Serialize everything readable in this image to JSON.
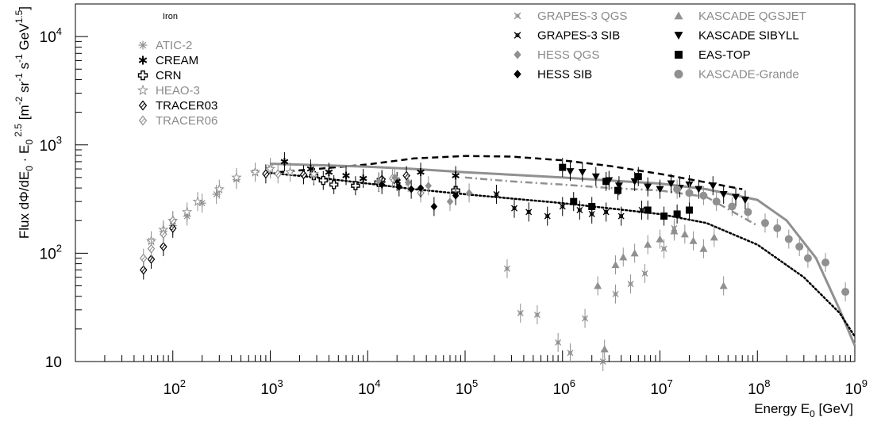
{
  "chart_data": {
    "type": "scatter",
    "title": "Iron",
    "xlabel": "Energy E_0 [GeV]",
    "ylabel": "Flux dΦ/dE_0 · E_0^2.5 [m^-2 sr^-1 s^-1 GeV^1.5]",
    "xscale": "log",
    "yscale": "log",
    "xlim": [
      10,
      1000000000
    ],
    "ylim": [
      10,
      20000
    ],
    "x_tick_labels": [
      {
        "v": 100,
        "b": "10",
        "e": "2"
      },
      {
        "v": 1000,
        "b": "10",
        "e": "3"
      },
      {
        "v": 10000,
        "b": "10",
        "e": "4"
      },
      {
        "v": 100000,
        "b": "10",
        "e": "5"
      },
      {
        "v": 1000000,
        "b": "10",
        "e": "6"
      },
      {
        "v": 10000000,
        "b": "10",
        "e": "7"
      },
      {
        "v": 100000000,
        "b": "10",
        "e": "8"
      },
      {
        "v": 1000000000,
        "b": "10",
        "e": "9"
      }
    ],
    "y_tick_labels": [
      {
        "v": 10,
        "b": "10",
        "e": ""
      },
      {
        "v": 100,
        "b": "10",
        "e": "2"
      },
      {
        "v": 1000,
        "b": "10",
        "e": "3"
      },
      {
        "v": 10000,
        "b": "10",
        "e": "4"
      }
    ],
    "legend_left": [
      {
        "name": "ATIC-2",
        "marker": "asterisk",
        "color": "#909090"
      },
      {
        "name": "CREAM",
        "marker": "snowflake",
        "color": "#000000"
      },
      {
        "name": "CRN",
        "marker": "cross-open",
        "color": "#000000"
      },
      {
        "name": "HEAO-3",
        "marker": "star-open",
        "color": "#909090"
      },
      {
        "name": "TRACER03",
        "marker": "diamond-open",
        "color": "#000000"
      },
      {
        "name": "TRACER06",
        "marker": "diamond-open",
        "color": "#909090"
      }
    ],
    "legend_mid": [
      {
        "name": "GRAPES-3 QGS",
        "marker": "xstar",
        "color": "#909090"
      },
      {
        "name": "GRAPES-3 SIB",
        "marker": "xstar",
        "color": "#000000"
      },
      {
        "name": "HESS QGS",
        "marker": "diamond",
        "color": "#909090"
      },
      {
        "name": "HESS SIB",
        "marker": "diamond",
        "color": "#000000"
      }
    ],
    "legend_right": [
      {
        "name": "KASCADE QGSJET",
        "marker": "triangle-up",
        "color": "#909090"
      },
      {
        "name": "KASCADE SIBYLL",
        "marker": "triangle-down",
        "color": "#000000"
      },
      {
        "name": "EAS-TOP",
        "marker": "square",
        "color": "#000000"
      },
      {
        "name": "KASCADE-Grande",
        "marker": "circle",
        "color": "#909090"
      }
    ],
    "series": [
      {
        "name": "ATIC-2",
        "marker": "asterisk",
        "color": "#909090",
        "points": [
          [
            60,
            130
          ],
          [
            80,
            160
          ],
          [
            100,
            180
          ],
          [
            140,
            220
          ],
          [
            200,
            290
          ],
          [
            280,
            350
          ],
          [
            450,
            480
          ],
          [
            700,
            560
          ],
          [
            1000,
            620
          ]
        ]
      },
      {
        "name": "CREAM",
        "marker": "snowflake",
        "color": "#000000",
        "points": [
          [
            1400,
            700
          ],
          [
            2600,
            600
          ],
          [
            4000,
            560
          ],
          [
            6000,
            520
          ],
          [
            9000,
            490
          ],
          [
            14000,
            470
          ],
          [
            20000,
            460
          ],
          [
            35000,
            560
          ],
          [
            80000,
            520
          ]
        ]
      },
      {
        "name": "CRN",
        "marker": "cross-open",
        "color": "#000000",
        "points": [
          [
            2800,
            520
          ],
          [
            3500,
            470
          ],
          [
            4500,
            430
          ],
          [
            7500,
            420
          ],
          [
            13000,
            450
          ],
          [
            80000,
            380
          ]
        ]
      },
      {
        "name": "HEAO-3",
        "marker": "star-open",
        "color": "#909090",
        "points": [
          [
            60,
            130
          ],
          [
            80,
            165
          ],
          [
            100,
            200
          ],
          [
            140,
            240
          ],
          [
            180,
            300
          ],
          [
            300,
            390
          ],
          [
            450,
            500
          ],
          [
            700,
            560
          ],
          [
            1000,
            600
          ],
          [
            1600,
            560
          ],
          [
            2800,
            540
          ]
        ]
      },
      {
        "name": "TRACER03",
        "marker": "diamond-open",
        "color": "#000000",
        "points": [
          [
            50,
            70
          ],
          [
            60,
            88
          ],
          [
            80,
            115
          ],
          [
            100,
            170
          ],
          [
            900,
            540
          ],
          [
            2200,
            530
          ],
          [
            14000,
            480
          ],
          [
            25000,
            520
          ]
        ]
      },
      {
        "name": "TRACER06",
        "marker": "diamond-open",
        "color": "#909090",
        "points": [
          [
            50,
            90
          ],
          [
            60,
            110
          ],
          [
            80,
            150
          ],
          [
            100,
            200
          ],
          [
            1200,
            540
          ],
          [
            18000,
            490
          ],
          [
            35000,
            360
          ]
        ]
      },
      {
        "name": "GRAPES-3 QGS",
        "marker": "xstar",
        "color": "#909090",
        "points": [
          [
            270000,
            72
          ],
          [
            370000,
            28
          ],
          [
            550000,
            27
          ],
          [
            900000,
            15
          ],
          [
            1200000,
            12
          ],
          [
            1700000,
            25
          ],
          [
            2600000,
            10
          ],
          [
            3500000,
            42
          ],
          [
            5000000,
            52
          ],
          [
            7000000,
            65
          ],
          [
            11000000,
            110
          ],
          [
            14000000,
            170
          ]
        ]
      },
      {
        "name": "GRAPES-3 SIB",
        "marker": "xstar",
        "color": "#000000",
        "points": [
          [
            210000,
            350
          ],
          [
            320000,
            260
          ],
          [
            450000,
            240
          ],
          [
            700000,
            220
          ],
          [
            1000000,
            270
          ],
          [
            1500000,
            250
          ],
          [
            2000000,
            230
          ],
          [
            2800000,
            240
          ],
          [
            4000000,
            220
          ],
          [
            6500000,
            250
          ]
        ]
      },
      {
        "name": "HESS QGS",
        "marker": "diamond",
        "color": "#909090",
        "points": [
          [
            13000,
            460
          ],
          [
            19000,
            500
          ],
          [
            26000,
            450
          ],
          [
            42000,
            420
          ],
          [
            70000,
            300
          ],
          [
            110000,
            360
          ]
        ]
      },
      {
        "name": "HESS SIB",
        "marker": "diamond",
        "color": "#000000",
        "points": [
          [
            14000,
            430
          ],
          [
            21000,
            410
          ],
          [
            28000,
            390
          ],
          [
            35000,
            400
          ],
          [
            48000,
            270
          ],
          [
            80000,
            340
          ]
        ]
      },
      {
        "name": "KASCADE QGSJET",
        "marker": "triangle-up",
        "color": "#909090",
        "points": [
          [
            2300000,
            50
          ],
          [
            2700000,
            13
          ],
          [
            3500000,
            78
          ],
          [
            4200000,
            92
          ],
          [
            5500000,
            100
          ],
          [
            7500000,
            120
          ],
          [
            10000000,
            135
          ],
          [
            14000000,
            160
          ],
          [
            18000000,
            150
          ],
          [
            22000000,
            130
          ],
          [
            28000000,
            110
          ],
          [
            36000000,
            140
          ],
          [
            45000000,
            50
          ]
        ]
      },
      {
        "name": "KASCADE SIBYLL",
        "marker": "triangle-down",
        "color": "#000000",
        "points": [
          [
            1200000,
            570
          ],
          [
            1600000,
            560
          ],
          [
            2200000,
            510
          ],
          [
            3000000,
            470
          ],
          [
            3800000,
            420
          ],
          [
            5500000,
            460
          ],
          [
            7500000,
            410
          ],
          [
            10000000,
            390
          ],
          [
            13000000,
            440
          ],
          [
            16000000,
            400
          ],
          [
            20000000,
            430
          ],
          [
            25000000,
            390
          ],
          [
            35000000,
            420
          ],
          [
            45000000,
            350
          ],
          [
            60000000,
            330
          ],
          [
            75000000,
            310
          ]
        ]
      },
      {
        "name": "EAS-TOP",
        "marker": "square",
        "color": "#000000",
        "points": [
          [
            1000000,
            620
          ],
          [
            1300000,
            300
          ],
          [
            2000000,
            270
          ],
          [
            2800000,
            460
          ],
          [
            3700000,
            380
          ],
          [
            6000000,
            510
          ],
          [
            7500000,
            250
          ],
          [
            11000000,
            220
          ],
          [
            15000000,
            230
          ],
          [
            20000000,
            250
          ]
        ]
      },
      {
        "name": "KASCADE-Grande",
        "marker": "circle",
        "color": "#909090",
        "points": [
          [
            15000000,
            390
          ],
          [
            20000000,
            360
          ],
          [
            28000000,
            340
          ],
          [
            38000000,
            300
          ],
          [
            55000000,
            270
          ],
          [
            80000000,
            240
          ],
          [
            120000000,
            190
          ],
          [
            160000000,
            170
          ],
          [
            210000000,
            135
          ],
          [
            270000000,
            115
          ],
          [
            330000000,
            90
          ],
          [
            500000000,
            82
          ],
          [
            800000000,
            44
          ]
        ]
      }
    ],
    "lines": [
      {
        "style": "dashed",
        "color": "#000000",
        "points": [
          [
            1200,
            560
          ],
          [
            3000,
            600
          ],
          [
            10000,
            660
          ],
          [
            30000,
            750
          ],
          [
            100000,
            790
          ],
          [
            300000,
            780
          ],
          [
            1000000,
            720
          ],
          [
            3000000,
            640
          ],
          [
            10000000,
            540
          ],
          [
            30000000,
            450
          ],
          [
            70000000,
            390
          ]
        ]
      },
      {
        "style": "solid",
        "color": "#909090",
        "points": [
          [
            1000,
            670
          ],
          [
            3000,
            650
          ],
          [
            10000,
            630
          ],
          [
            30000,
            600
          ],
          [
            100000,
            560
          ],
          [
            300000,
            530
          ],
          [
            1000000,
            500
          ],
          [
            3000000,
            470
          ],
          [
            10000000,
            440
          ],
          [
            30000000,
            390
          ],
          [
            100000000,
            310
          ],
          [
            200000000,
            200
          ],
          [
            400000000,
            90
          ],
          [
            700000000,
            30
          ],
          [
            1000000000,
            14
          ]
        ]
      },
      {
        "style": "dashdot",
        "color": "#909090",
        "points": [
          [
            100000,
            500
          ],
          [
            300000,
            460
          ],
          [
            1000000,
            430
          ],
          [
            3000000,
            400
          ],
          [
            10000000,
            380
          ],
          [
            30000000,
            330
          ],
          [
            100000000,
            180
          ]
        ]
      },
      {
        "style": "dotted",
        "color": "#000000",
        "points": [
          [
            1000,
            550
          ],
          [
            3000,
            500
          ],
          [
            10000,
            440
          ],
          [
            30000,
            390
          ],
          [
            100000,
            350
          ],
          [
            300000,
            320
          ],
          [
            1000000,
            290
          ],
          [
            3000000,
            260
          ],
          [
            10000000,
            230
          ],
          [
            30000000,
            190
          ],
          [
            100000000,
            120
          ],
          [
            300000000,
            60
          ],
          [
            700000000,
            28
          ],
          [
            1000000000,
            17
          ]
        ]
      }
    ]
  }
}
